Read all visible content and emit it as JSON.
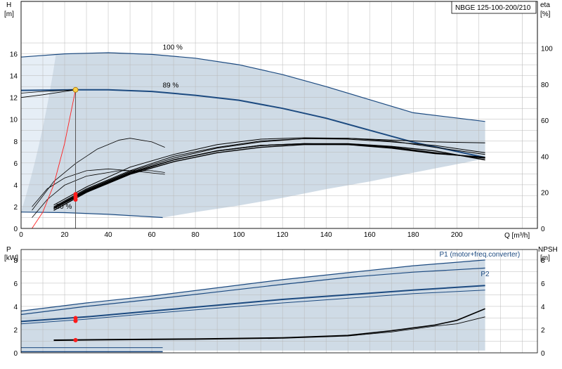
{
  "colors": {
    "envelope_fill": "#cfdbe6",
    "envelope_light": "#e6eef6",
    "curve_blue": "#1c4a80",
    "curve_black": "#000000",
    "grid": "#b8b8b8",
    "duty_point": "#ffd24a",
    "marker_red": "#ff1a1a",
    "system_curve": "#ff2020"
  },
  "chart_data": [
    {
      "type": "line",
      "id": "qh",
      "title_box": "NBGE 125-100-200/210",
      "ylabel": "H",
      "yunit": "[m]",
      "y2label": "eta",
      "y2unit": "[%]",
      "xlabel": "Q [m³/h]",
      "xlim": [
        0,
        237
      ],
      "ylim": [
        0,
        19
      ],
      "y2lim": [
        0,
        115
      ],
      "xticks": [
        0,
        20,
        40,
        60,
        80,
        100,
        120,
        140,
        160,
        180,
        200
      ],
      "yticks": [
        0,
        2,
        4,
        6,
        8,
        10,
        12,
        14,
        16
      ],
      "y2ticks": [
        0,
        20,
        40,
        60,
        80,
        100
      ],
      "grid": true,
      "speed_labels": [
        {
          "text": "100 %",
          "x": 65,
          "y": 16.4
        },
        {
          "text": "89 %",
          "x": 65,
          "y": 12.9
        },
        {
          "text": "30 %",
          "x": 16,
          "y": 1.8
        }
      ],
      "envelope": [
        [
          0,
          15.7
        ],
        [
          20,
          16.0
        ],
        [
          40,
          16.1
        ],
        [
          60,
          15.95
        ],
        [
          80,
          15.6
        ],
        [
          100,
          15.0
        ],
        [
          120,
          14.1
        ],
        [
          140,
          13.0
        ],
        [
          160,
          11.8
        ],
        [
          180,
          10.6
        ],
        [
          213,
          9.8
        ],
        [
          213,
          6.4
        ],
        [
          180,
          5.1
        ],
        [
          160,
          4.3
        ],
        [
          140,
          3.6
        ],
        [
          120,
          2.8
        ],
        [
          100,
          2.1
        ],
        [
          80,
          1.5
        ],
        [
          65,
          1.0
        ],
        [
          40,
          1.2
        ],
        [
          20,
          1.4
        ],
        [
          0,
          1.5
        ]
      ],
      "series": [
        {
          "name": "100 %",
          "color": "curve_blue",
          "width": 1.2,
          "points": [
            [
              0,
              15.7
            ],
            [
              20,
              16.0
            ],
            [
              40,
              16.1
            ],
            [
              60,
              15.95
            ],
            [
              80,
              15.6
            ],
            [
              100,
              15.0
            ],
            [
              120,
              14.1
            ],
            [
              140,
              13.0
            ],
            [
              160,
              11.8
            ],
            [
              180,
              10.6
            ],
            [
              213,
              9.8
            ]
          ]
        },
        {
          "name": "89 %",
          "color": "curve_blue",
          "width": 2,
          "points": [
            [
              0,
              12.65
            ],
            [
              25,
              12.7
            ],
            [
              40,
              12.7
            ],
            [
              60,
              12.55
            ],
            [
              80,
              12.2
            ],
            [
              100,
              11.75
            ],
            [
              120,
              11.0
            ],
            [
              140,
              10.1
            ],
            [
              160,
              9.0
            ],
            [
              180,
              7.9
            ],
            [
              213,
              6.5
            ]
          ]
        },
        {
          "name": "30 %",
          "color": "curve_blue",
          "width": 1.2,
          "points": [
            [
              0,
              1.5
            ],
            [
              20,
              1.45
            ],
            [
              40,
              1.3
            ],
            [
              65,
              1.0
            ]
          ]
        },
        {
          "name": "",
          "color": "curve_black",
          "width": 0.8,
          "points": [
            [
              0,
              12.4
            ],
            [
              10,
              12.55
            ],
            [
              25,
              12.7
            ]
          ]
        },
        {
          "name": "",
          "color": "curve_black",
          "width": 0.8,
          "points": [
            [
              0,
              12.0
            ],
            [
              10,
              12.25
            ],
            [
              25,
              12.7
            ]
          ]
        }
      ],
      "efficiency_series": [
        {
          "width": 0.8,
          "points": [
            [
              5,
              10
            ],
            [
              15,
              26
            ],
            [
              25,
              36
            ],
            [
              35,
              44
            ],
            [
              45,
              49
            ],
            [
              50,
              50
            ],
            [
              60,
              48
            ],
            [
              66,
              45
            ]
          ]
        },
        {
          "width": 0.8,
          "points": [
            [
              5,
              12
            ],
            [
              12,
              22
            ],
            [
              20,
              28
            ],
            [
              30,
              32
            ],
            [
              40,
              33
            ],
            [
              50,
              32
            ],
            [
              66,
              30
            ]
          ]
        },
        {
          "width": 0.8,
          "points": [
            [
              5,
              6
            ],
            [
              12,
              16
            ],
            [
              20,
              24
            ],
            [
              30,
              29
            ],
            [
              45,
              32
            ],
            [
              60,
              32
            ],
            [
              66,
              31
            ]
          ]
        },
        {
          "width": 1.4,
          "points": [
            [
              15,
              11
            ],
            [
              30,
              21
            ],
            [
              50,
              31
            ],
            [
              70,
              38
            ],
            [
              90,
              43
            ],
            [
              110,
              46
            ],
            [
              130,
              47
            ],
            [
              150,
              47
            ],
            [
              170,
              45.5
            ],
            [
              190,
              43
            ],
            [
              213,
              38
            ]
          ]
        },
        {
          "width": 1.4,
          "points": [
            [
              15,
              10
            ],
            [
              30,
              20
            ],
            [
              50,
              30
            ],
            [
              70,
              37
            ],
            [
              90,
              42
            ],
            [
              110,
              45
            ],
            [
              130,
              46.5
            ],
            [
              150,
              46.5
            ],
            [
              170,
              45
            ],
            [
              190,
              42
            ],
            [
              213,
              39
            ]
          ]
        },
        {
          "width": 1.0,
          "points": [
            [
              15,
              12
            ],
            [
              30,
              22
            ],
            [
              50,
              32
            ],
            [
              70,
              40
            ],
            [
              90,
              45
            ],
            [
              110,
              48.5
            ],
            [
              130,
              49.8
            ],
            [
              150,
              49.5
            ],
            [
              170,
              48
            ],
            [
              190,
              46
            ],
            [
              213,
              42
            ]
          ]
        },
        {
          "width": 1.0,
          "points": [
            [
              15,
              11.5
            ],
            [
              30,
              21.5
            ],
            [
              50,
              31.5
            ],
            [
              70,
              39
            ],
            [
              90,
              44.5
            ],
            [
              110,
              48
            ],
            [
              130,
              49.8
            ],
            [
              150,
              50
            ],
            [
              170,
              49
            ],
            [
              190,
              48
            ],
            [
              213,
              47.5
            ]
          ]
        },
        {
          "width": 1.0,
          "points": [
            [
              15,
              13
            ],
            [
              30,
              23
            ],
            [
              50,
              34
            ],
            [
              70,
              41
            ],
            [
              90,
              46.5
            ],
            [
              110,
              49.5
            ],
            [
              130,
              50.3
            ],
            [
              150,
              50
            ],
            [
              170,
              48.5
            ],
            [
              190,
              45
            ],
            [
              213,
              41
            ]
          ]
        },
        {
          "width": 1.4,
          "points": [
            [
              15,
              11
            ],
            [
              30,
              20.5
            ],
            [
              50,
              30.5
            ],
            [
              70,
              38
            ],
            [
              90,
              43
            ],
            [
              110,
              46
            ],
            [
              130,
              47
            ],
            [
              150,
              46.5
            ],
            [
              170,
              44.5
            ],
            [
              190,
              41.5
            ],
            [
              213,
              39.5
            ]
          ]
        }
      ],
      "system_curve": [
        [
          5,
          0
        ],
        [
          10,
          1.5
        ],
        [
          15,
          4.0
        ],
        [
          20,
          7.8
        ],
        [
          25,
          12.7
        ]
      ],
      "duty_point": {
        "x": 25,
        "y": 12.7
      },
      "duty_line_x": 25,
      "eta_markers": [
        {
          "x": 25,
          "y2": 16
        },
        {
          "x": 25,
          "y2": 17.5
        },
        {
          "x": 25,
          "y2": 19
        }
      ]
    },
    {
      "type": "line",
      "id": "power_npsh",
      "ylabel": "P",
      "yunit": "[kW]",
      "y2label": "NPSH",
      "y2unit": "[m]",
      "xlim": [
        0,
        237
      ],
      "ylim": [
        0,
        8.9
      ],
      "y2lim": [
        0,
        8.9
      ],
      "yticks": [
        0,
        2,
        4,
        6,
        8
      ],
      "y2ticks": [
        0,
        2,
        4,
        6,
        8
      ],
      "grid": true,
      "series_labels": [
        {
          "text": "P1 (motor+freq.converter)",
          "x": 192,
          "y": 8.3
        },
        {
          "text": "P2",
          "x": 211,
          "y": 6.6
        }
      ],
      "envelope": [
        [
          0,
          3.6
        ],
        [
          30,
          4.3
        ],
        [
          60,
          4.9
        ],
        [
          90,
          5.6
        ],
        [
          120,
          6.3
        ],
        [
          150,
          6.9
        ],
        [
          180,
          7.5
        ],
        [
          213,
          8.0
        ],
        [
          213,
          0.2
        ],
        [
          180,
          0.2
        ],
        [
          150,
          0.2
        ],
        [
          120,
          0.2
        ],
        [
          90,
          0.2
        ],
        [
          60,
          0.2
        ],
        [
          30,
          0.2
        ],
        [
          0,
          0.2
        ]
      ],
      "series": [
        {
          "name": "P1 (motor+freq.converter)",
          "color": "curve_blue",
          "width": 1.2,
          "points": [
            [
              0,
              3.6
            ],
            [
              30,
              4.3
            ],
            [
              60,
              4.9
            ],
            [
              90,
              5.6
            ],
            [
              120,
              6.3
            ],
            [
              150,
              6.9
            ],
            [
              180,
              7.5
            ],
            [
              213,
              8.0
            ]
          ]
        },
        {
          "name": "P2",
          "color": "curve_blue",
          "width": 1.2,
          "points": [
            [
              0,
              3.3
            ],
            [
              30,
              4.0
            ],
            [
              60,
              4.6
            ],
            [
              90,
              5.25
            ],
            [
              120,
              5.9
            ],
            [
              150,
              6.5
            ],
            [
              180,
              6.95
            ],
            [
              213,
              7.3
            ]
          ]
        },
        {
          "name": "",
          "color": "curve_blue",
          "width": 2,
          "points": [
            [
              0,
              2.7
            ],
            [
              30,
              3.1
            ],
            [
              60,
              3.6
            ],
            [
              90,
              4.1
            ],
            [
              120,
              4.6
            ],
            [
              150,
              5.0
            ],
            [
              180,
              5.4
            ],
            [
              213,
              5.8
            ]
          ]
        },
        {
          "name": "",
          "color": "curve_blue",
          "width": 1.0,
          "points": [
            [
              0,
              2.5
            ],
            [
              30,
              2.9
            ],
            [
              60,
              3.4
            ],
            [
              90,
              3.85
            ],
            [
              120,
              4.3
            ],
            [
              150,
              4.7
            ],
            [
              180,
              5.1
            ],
            [
              213,
              5.4
            ]
          ]
        },
        {
          "name": "",
          "color": "curve_blue",
          "width": 1.6,
          "points": [
            [
              0,
              0.1
            ],
            [
              65,
              0.1
            ]
          ]
        },
        {
          "name": "",
          "color": "curve_blue",
          "width": 1.0,
          "points": [
            [
              0,
              0.45
            ],
            [
              65,
              0.45
            ]
          ]
        }
      ],
      "npsh_series": [
        {
          "width": 1.6,
          "points": [
            [
              15,
              1.1
            ],
            [
              40,
              1.15
            ],
            [
              80,
              1.2
            ],
            [
              120,
              1.3
            ],
            [
              150,
              1.5
            ],
            [
              170,
              1.9
            ],
            [
              190,
              2.4
            ],
            [
              200,
              2.8
            ],
            [
              213,
              3.8
            ]
          ]
        },
        {
          "width": 0.8,
          "points": [
            [
              15,
              1.05
            ],
            [
              40,
              1.1
            ],
            [
              80,
              1.15
            ],
            [
              120,
              1.25
            ],
            [
              150,
              1.45
            ],
            [
              170,
              1.8
            ],
            [
              190,
              2.3
            ],
            [
              200,
              2.5
            ],
            [
              213,
              3.1
            ]
          ]
        }
      ],
      "markers": [
        {
          "x": 25,
          "y": 3.0
        },
        {
          "x": 25,
          "y": 2.75
        },
        {
          "x": 25,
          "y": 1.1
        }
      ]
    }
  ]
}
